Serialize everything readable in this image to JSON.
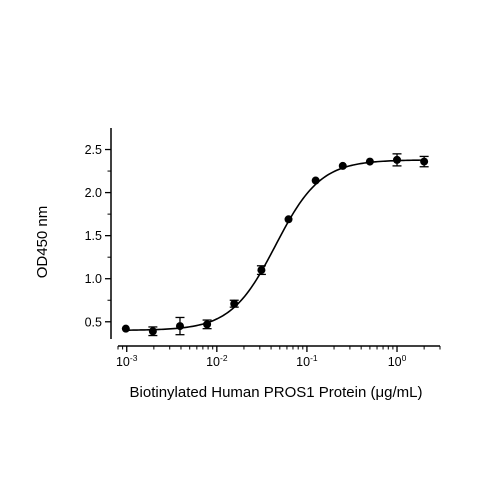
{
  "chart_data": {
    "type": "scatter",
    "xlabel": "Biotinylated Human PROS1 Protein (μg/mL)",
    "ylabel": "OD450 nm",
    "x_scale": "log",
    "xlim": [
      0.0008,
      3
    ],
    "ylim": [
      0.3,
      2.75
    ],
    "x_ticks": [
      {
        "value": 0.001,
        "base": "10",
        "exp": "-3"
      },
      {
        "value": 0.01,
        "base": "10",
        "exp": "-2"
      },
      {
        "value": 0.1,
        "base": "10",
        "exp": "-1"
      },
      {
        "value": 1,
        "base": "10",
        "exp": "0"
      }
    ],
    "y_ticks": [
      {
        "value": 0.5,
        "label": "0.5"
      },
      {
        "value": 1.0,
        "label": "1.0"
      },
      {
        "value": 1.5,
        "label": "1.5"
      },
      {
        "value": 2.0,
        "label": "2.0"
      },
      {
        "value": 2.5,
        "label": "2.5"
      }
    ],
    "grid": false,
    "series": [
      {
        "points": [
          {
            "x": 0.000977,
            "y": 0.42,
            "err": 0.0
          },
          {
            "x": 0.00195,
            "y": 0.39,
            "err": 0.05
          },
          {
            "x": 0.0039,
            "y": 0.45,
            "err": 0.1
          },
          {
            "x": 0.0078,
            "y": 0.47,
            "err": 0.05
          },
          {
            "x": 0.0156,
            "y": 0.71,
            "err": 0.04
          },
          {
            "x": 0.03125,
            "y": 1.1,
            "err": 0.05
          },
          {
            "x": 0.0625,
            "y": 1.69,
            "err": 0.0
          },
          {
            "x": 0.125,
            "y": 2.14,
            "err": 0.0
          },
          {
            "x": 0.25,
            "y": 2.31,
            "err": 0.0
          },
          {
            "x": 0.5,
            "y": 2.36,
            "err": 0.0
          },
          {
            "x": 1.0,
            "y": 2.38,
            "err": 0.07
          },
          {
            "x": 2.0,
            "y": 2.36,
            "err": 0.06
          }
        ],
        "fit": {
          "model": "4PL",
          "bottom": 0.4,
          "top": 2.38,
          "ec50": 0.045,
          "hill": 1.75
        },
        "color": "#000000"
      }
    ]
  }
}
